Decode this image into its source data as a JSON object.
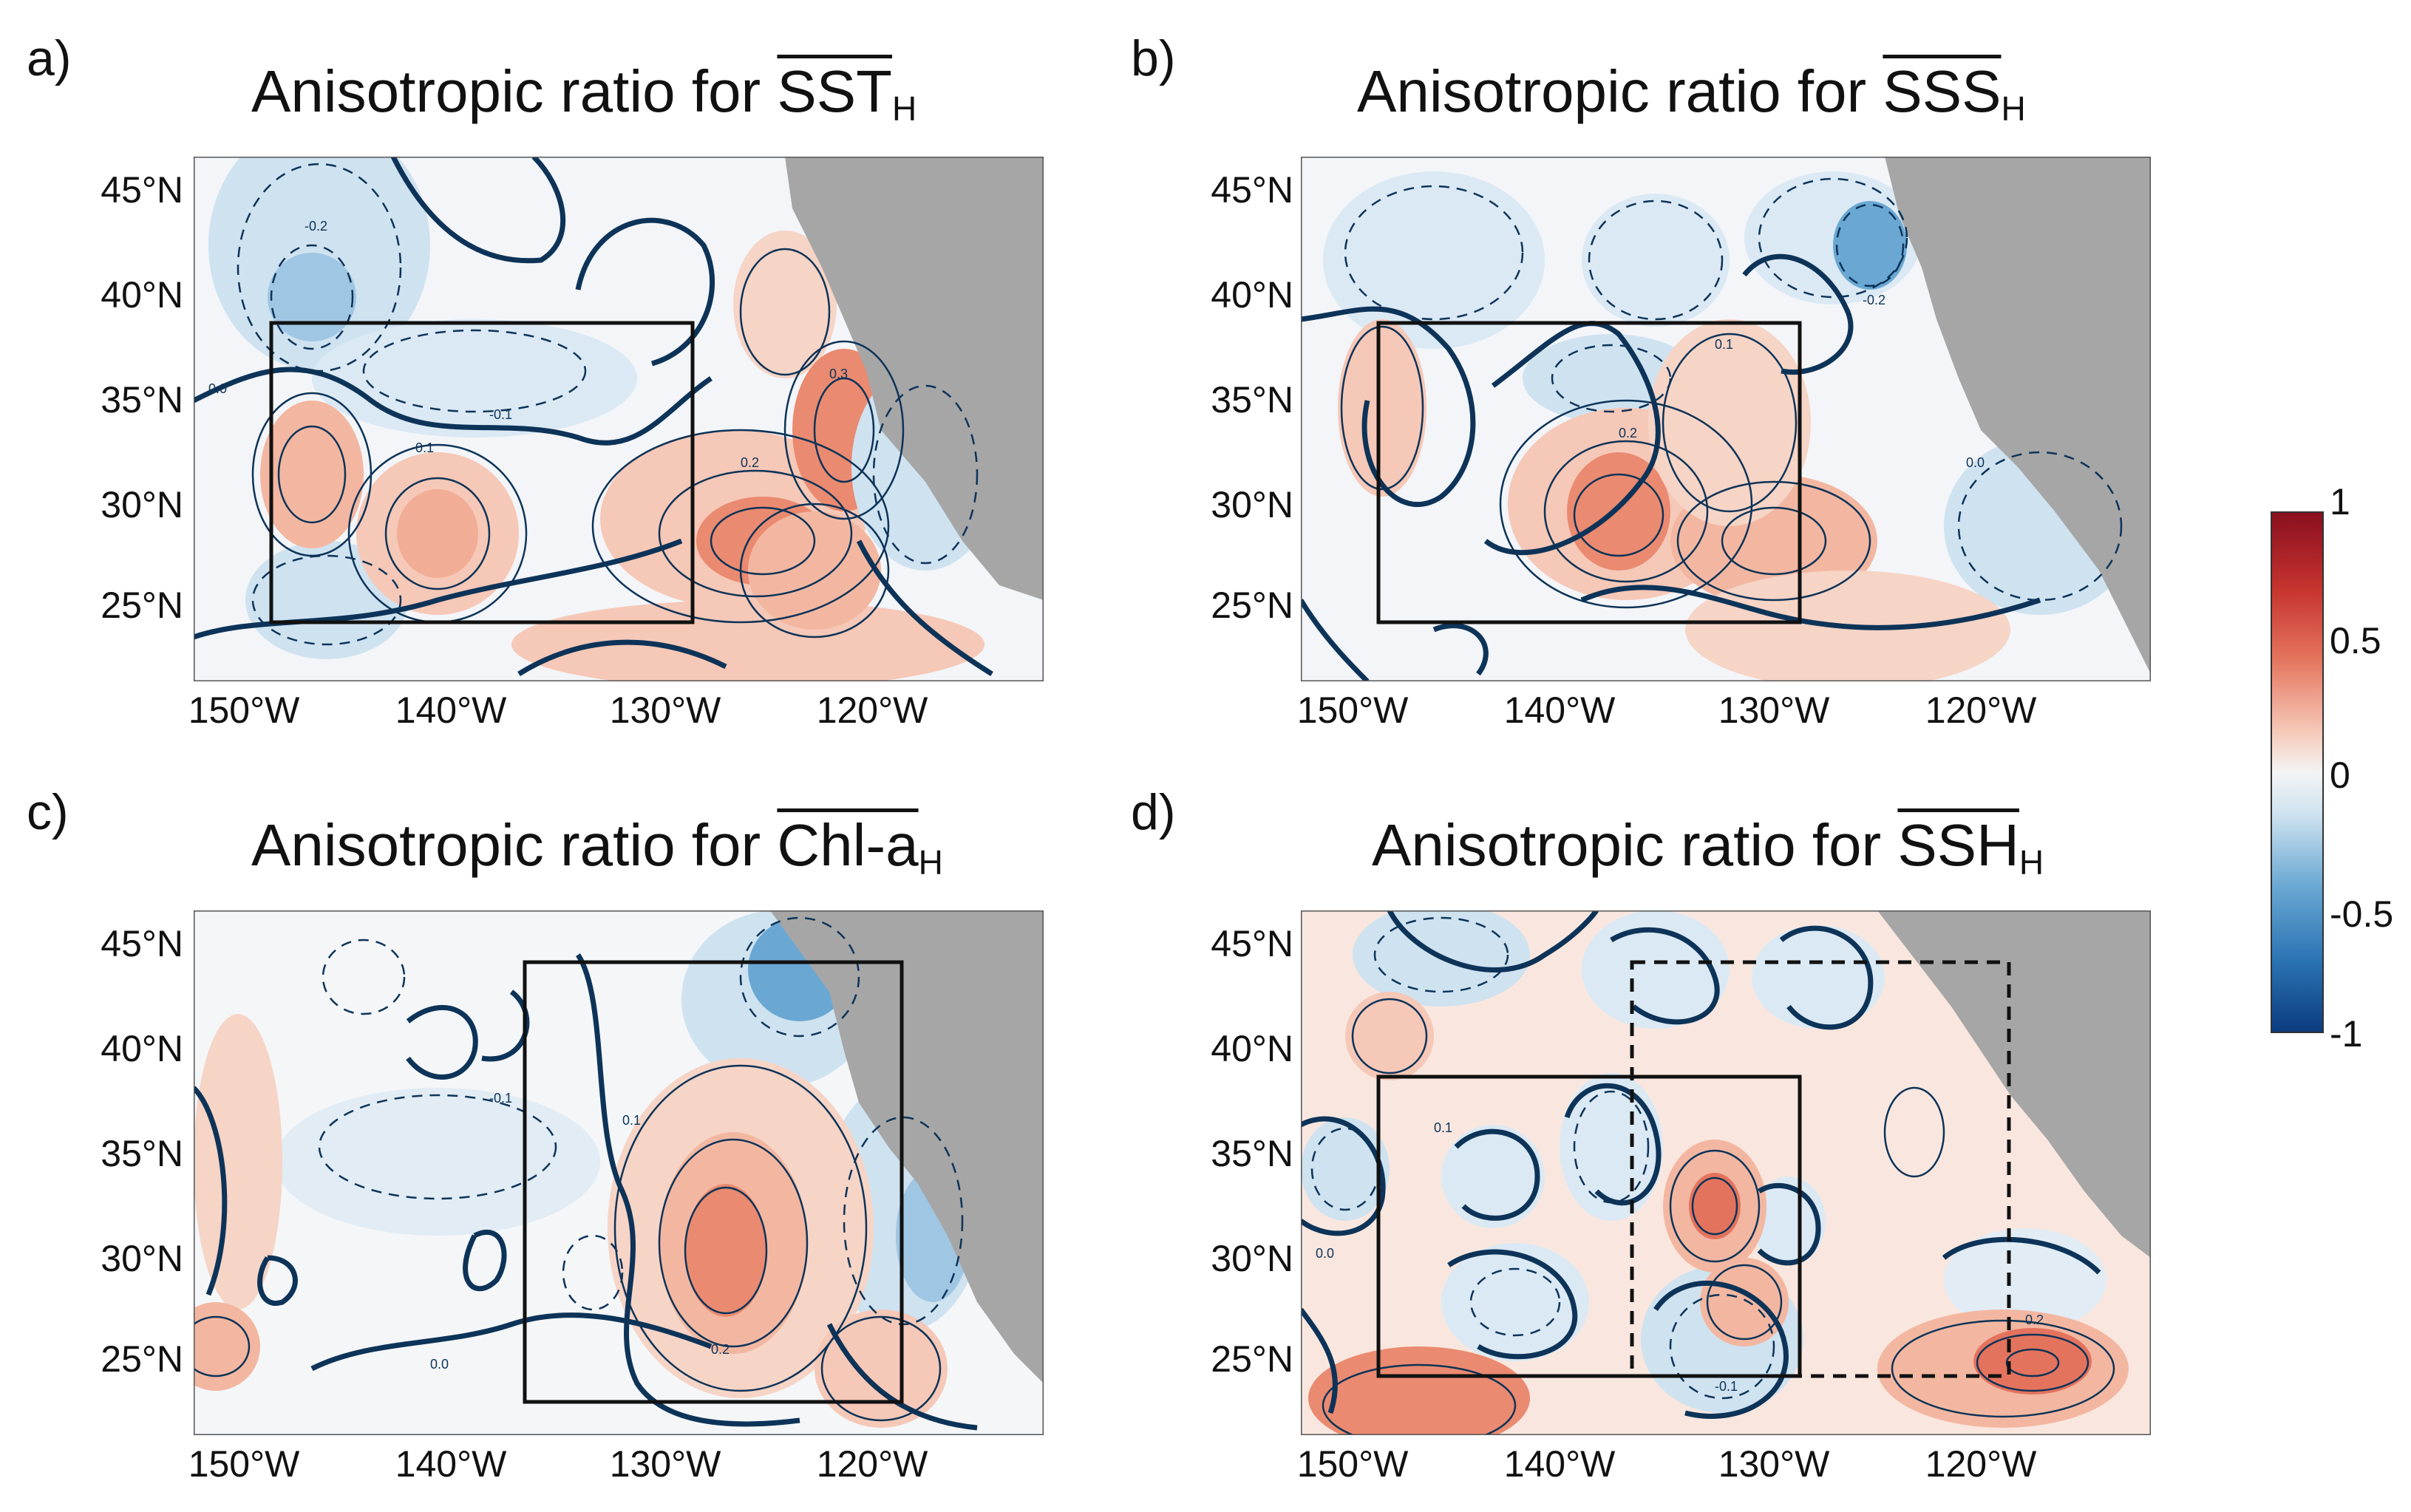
{
  "colors": {
    "land": "#a6a6a6",
    "warm": "#e4735d",
    "warm_light": "#f6c8b7",
    "cool": "#6aa8d3",
    "cool_light": "#cfe2f0",
    "contour": "#0d3358"
  },
  "lat_labels": [
    "45°N",
    "40°N",
    "35°N",
    "30°N",
    "25°N"
  ],
  "lon_labels": [
    "150°W",
    "140°W",
    "130°W",
    "120°W"
  ],
  "panels": [
    {
      "id": "a",
      "letter": "a)",
      "title_prefix": "Anisotropic ratio for ",
      "var": "SST",
      "sub": "H"
    },
    {
      "id": "b",
      "letter": "b)",
      "title_prefix": "Anisotropic ratio for ",
      "var": "SSS",
      "sub": "H"
    },
    {
      "id": "c",
      "letter": "c)",
      "title_prefix": "Anisotropic ratio for ",
      "var": "Chl-a",
      "sub": "H"
    },
    {
      "id": "d",
      "letter": "d)",
      "title_prefix": "Anisotropic ratio for ",
      "var": "SSH",
      "sub": "H"
    }
  ],
  "colorbar": {
    "labels": [
      "1",
      "0.5",
      "0",
      "-0.5",
      "-1"
    ],
    "min": -1,
    "max": 1
  },
  "contour_labels": {
    "a": [
      "0.1",
      "0.2",
      "0.3",
      "-0.1",
      "-0.2",
      "0.0"
    ],
    "b": [
      "0.1",
      "0.2",
      "-0.2",
      "0.0"
    ],
    "c": [
      "0.1",
      "0.2",
      "-0.1",
      "0.0"
    ],
    "d": [
      "0.2",
      "0.1",
      "-0.1",
      "0.0"
    ]
  }
}
